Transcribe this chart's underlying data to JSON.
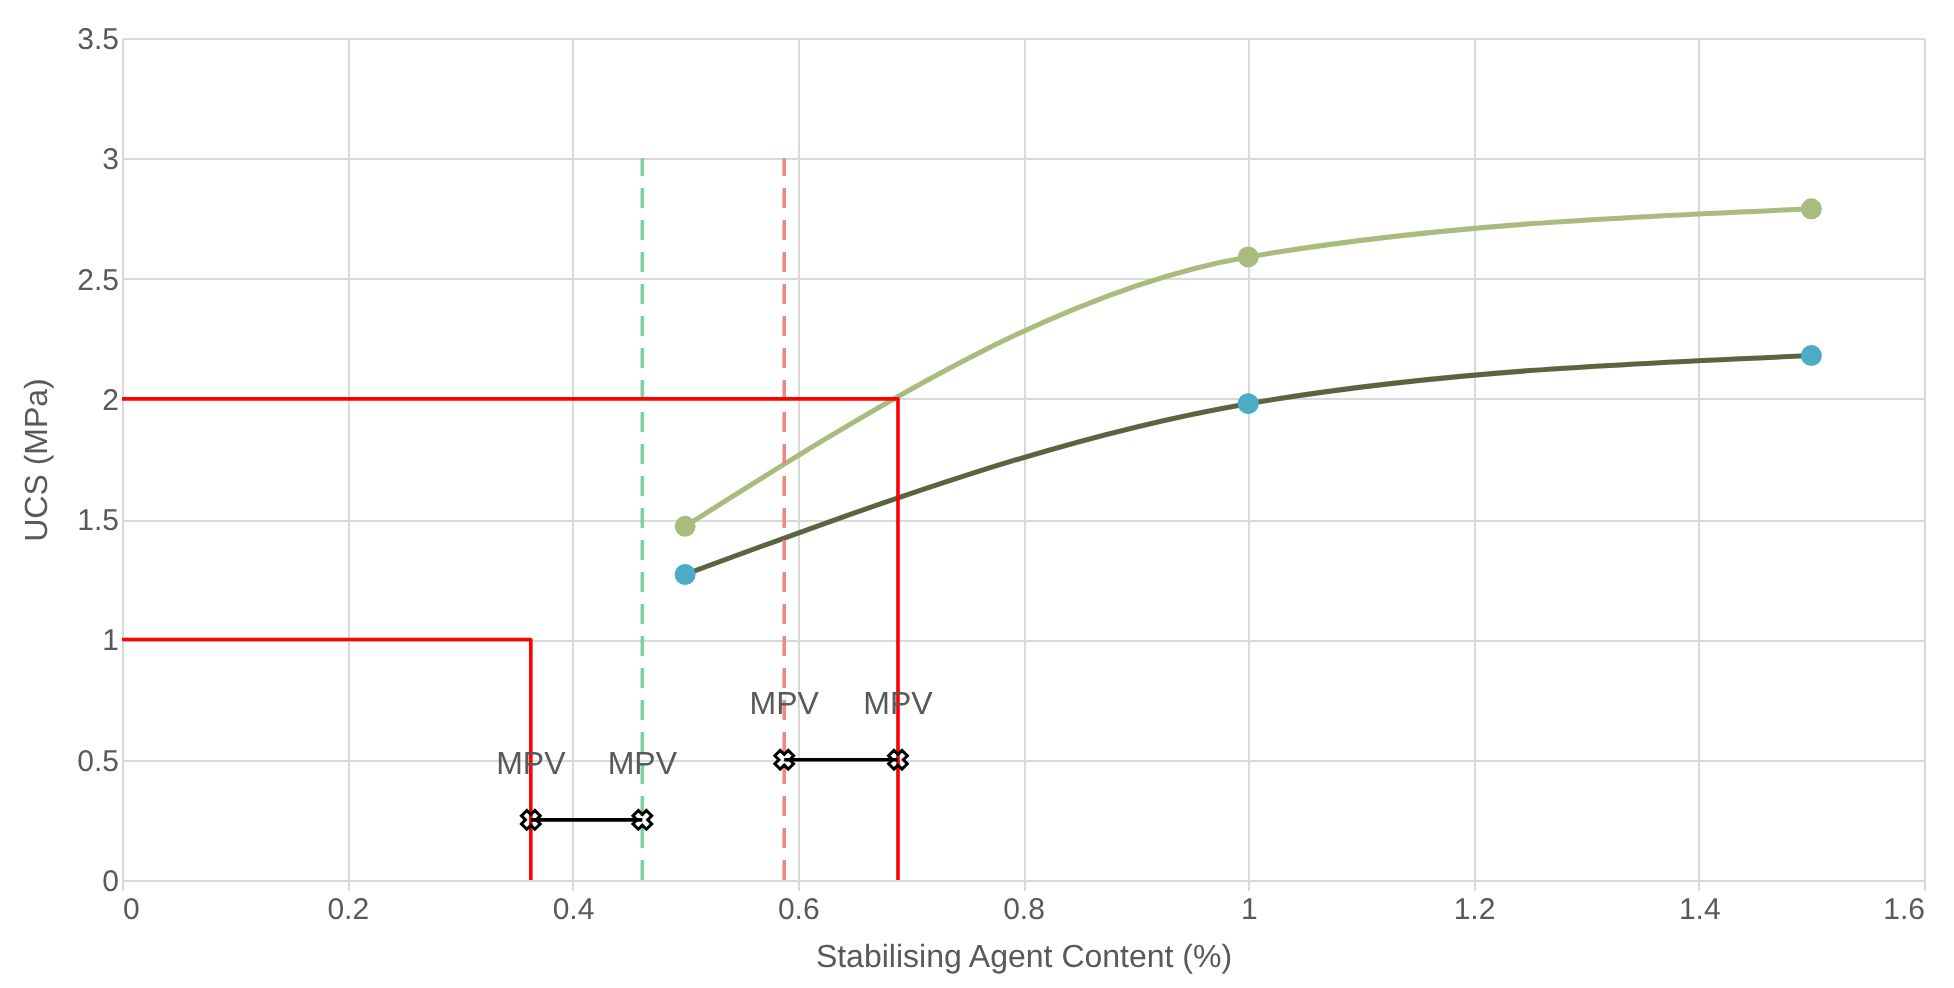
{
  "chart_data": {
    "type": "line",
    "xlabel": "Stabilising Agent Content (%)",
    "ylabel": "UCS (MPa)",
    "xlim": [
      0,
      1.6
    ],
    "xticks": [
      0,
      0.2,
      0.4,
      0.6,
      0.8,
      1,
      1.2,
      1.4,
      1.6
    ],
    "ylim": [
      0,
      3.5
    ],
    "yticks": [
      0,
      0.5,
      1,
      1.5,
      2,
      2.5,
      3,
      3.5
    ],
    "grid": true,
    "series": [
      {
        "color": "#a9bc7e",
        "marker": "circle",
        "line_style": "solid",
        "x": [
          0.5,
          1,
          1.5
        ],
        "values": [
          1.47,
          2.59,
          2.79
        ]
      },
      {
        "color": "#5b6440",
        "marker": "none",
        "line_style": "solid",
        "x": [
          0.5,
          1,
          1.5
        ],
        "values": [
          1.27,
          1.98,
          2.18
        ]
      },
      {
        "type": "scatter",
        "color": "#4bacc6",
        "marker": "circle",
        "x": [
          0.5,
          1,
          1.5
        ],
        "values": [
          1.27,
          1.98,
          2.18
        ]
      },
      {
        "type": "line",
        "color": "#7dcfa0",
        "marker": "none",
        "line_style": "dashed",
        "x": [
          0.462,
          0.462
        ],
        "values": [
          0,
          3
        ]
      },
      {
        "type": "line",
        "color": "#e88a8a",
        "marker": "none",
        "line_style": "dashed",
        "x": [
          0.588,
          0.588
        ],
        "values": [
          0,
          3
        ]
      },
      {
        "type": "line",
        "color": "#ff0000",
        "marker": "none",
        "line_style": "solid",
        "x": [
          0,
          0.363,
          0.363
        ],
        "values": [
          1,
          1,
          0
        ]
      },
      {
        "type": "line",
        "color": "#ff0000",
        "marker": "none",
        "line_style": "solid",
        "x": [
          0,
          0.689,
          0.689
        ],
        "values": [
          2,
          2,
          0
        ]
      },
      {
        "type": "line",
        "color": "#000000",
        "marker": "cross",
        "line_style": "solid",
        "x": [
          0.363,
          0.462
        ],
        "values": [
          0.25,
          0.25
        ]
      },
      {
        "type": "line",
        "color": "#000000",
        "marker": "cross",
        "line_style": "solid",
        "x": [
          0.588,
          0.689
        ],
        "values": [
          0.5,
          0.5
        ]
      }
    ],
    "annotations": [
      {
        "text": "MPV",
        "x": 0.363,
        "y": 0.25
      },
      {
        "text": "MPV",
        "x": 0.462,
        "y": 0.25
      },
      {
        "text": "MPV",
        "x": 0.588,
        "y": 0.5
      },
      {
        "text": "MPV",
        "x": 0.689,
        "y": 0.5
      }
    ]
  }
}
